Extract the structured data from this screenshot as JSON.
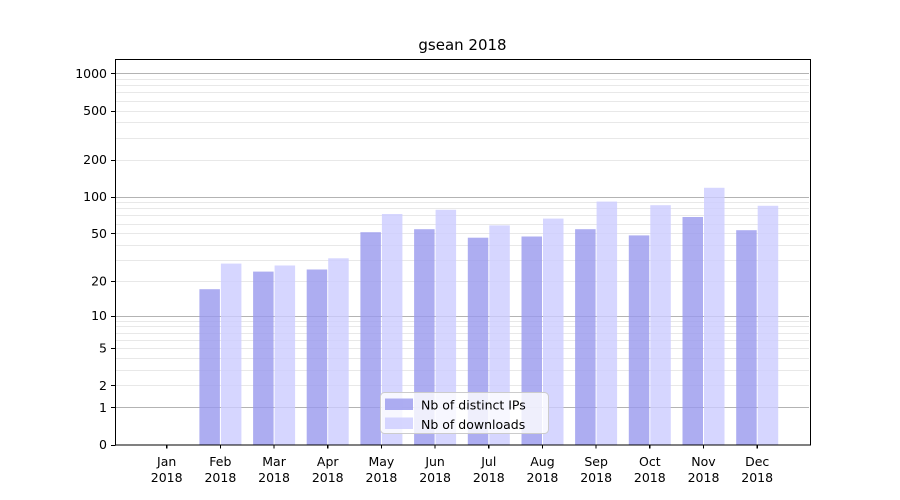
{
  "figure": {
    "title": "gsean 2018"
  },
  "chart_data": {
    "type": "bar",
    "title": "gsean 2018",
    "categories": [
      "Jan",
      "Feb",
      "Mar",
      "Apr",
      "May",
      "Jun",
      "Jul",
      "Aug",
      "Sep",
      "Oct",
      "Nov",
      "Dec"
    ],
    "year_label": "2018",
    "series": [
      {
        "name": "Nb of distinct IPs",
        "color": "#9999ee",
        "values": [
          0,
          17,
          24,
          25,
          51,
          54,
          46,
          47,
          54,
          48,
          68,
          53
        ]
      },
      {
        "name": "Nb of downloads",
        "color": "#ccccff",
        "values": [
          0,
          28,
          27,
          31,
          72,
          78,
          58,
          66,
          91,
          85,
          118,
          84
        ]
      }
    ],
    "yscale": "log1p",
    "yticks": [
      0,
      1,
      2,
      5,
      10,
      20,
      50,
      100,
      200,
      500,
      1000
    ],
    "ylim": [
      0,
      1300
    ],
    "grid": "horizontal",
    "legend_position": "lower-center",
    "bar_alpha": 0.8,
    "colors": {
      "axis": "#000000",
      "major_grid": "#b3b3b3",
      "minor_grid": "#e8e8e8",
      "legend_border": "#cccccc",
      "legend_bg": "#ffffff"
    }
  }
}
